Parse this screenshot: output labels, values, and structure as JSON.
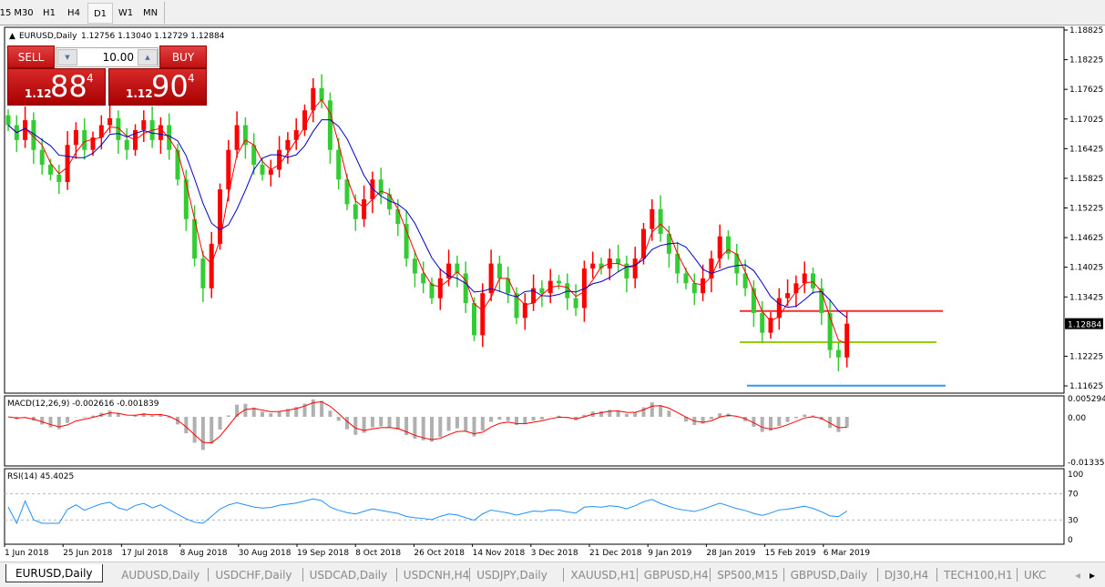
{
  "toolbar": {
    "timeframes": [
      {
        "label": "15"
      },
      {
        "label": "M30"
      },
      {
        "label": "H1"
      },
      {
        "label": "H4"
      },
      {
        "label": "D1",
        "active": true
      },
      {
        "label": "W1"
      },
      {
        "label": "MN"
      }
    ]
  },
  "chart_header": {
    "symbol": "EURUSD,Daily",
    "ohlc": "1.12756 1.13040 1.12729 1.12884"
  },
  "trade_panel": {
    "sell_label": "SELL",
    "buy_label": "BUY",
    "lot": "10.00",
    "bid": {
      "prefix": "1.12",
      "big": "88",
      "sup": "4"
    },
    "ask": {
      "prefix": "1.12",
      "big": "90",
      "sup": "4"
    }
  },
  "colors": {
    "bull": "#ff0000",
    "bear": "#33cc33",
    "ma_fast": "#ff0000",
    "ma_slow": "#0000cc",
    "resistance": "#f03030",
    "support": "#99cc00",
    "low_line": "#3399ee",
    "macd_hist": "#b0b0b0",
    "macd_signal": "#ff0000",
    "rsi": "#1e90ff"
  },
  "chart_data": {
    "type": "candlestick",
    "price_axis": {
      "ticks": [
        "1.18825",
        "1.18225",
        "1.17625",
        "1.17025",
        "1.16425",
        "1.15825",
        "1.15225",
        "1.14625",
        "1.14025",
        "1.13425",
        "1.12225",
        "1.11625"
      ],
      "range": [
        1.11625,
        1.18825
      ],
      "current_price": "1.12884"
    },
    "date_ticks": [
      "1 Jun 2018",
      "25 Jun 2018",
      "17 Jul 2018",
      "8 Aug 2018",
      "30 Aug 2018",
      "19 Sep 2018",
      "8 Oct 2018",
      "26 Oct 2018",
      "14 Nov 2018",
      "3 Dec 2018",
      "21 Dec 2018",
      "9 Jan 2019",
      "28 Jan 2019",
      "15 Feb 2019",
      "6 Mar 2019"
    ],
    "closes": [
      1.169,
      1.166,
      1.17,
      1.164,
      1.161,
      1.159,
      1.1575,
      1.165,
      1.168,
      1.164,
      1.1665,
      1.169,
      1.1704,
      1.166,
      1.164,
      1.168,
      1.17,
      1.166,
      1.169,
      1.164,
      1.158,
      1.15,
      1.142,
      1.136,
      1.145,
      1.156,
      1.164,
      1.169,
      1.165,
      1.161,
      1.159,
      1.16,
      1.164,
      1.166,
      1.168,
      1.172,
      1.1765,
      1.174,
      1.164,
      1.158,
      1.153,
      1.15,
      1.154,
      1.158,
      1.155,
      1.152,
      1.149,
      1.142,
      1.139,
      1.137,
      1.134,
      1.138,
      1.141,
      1.139,
      1.133,
      1.1265,
      1.135,
      1.141,
      1.138,
      1.135,
      1.13,
      1.133,
      1.136,
      1.135,
      1.1375,
      1.137,
      1.134,
      1.132,
      1.14,
      1.141,
      1.14,
      1.142,
      1.141,
      1.138,
      1.142,
      1.148,
      1.152,
      1.147,
      1.143,
      1.139,
      1.137,
      1.135,
      1.138,
      1.142,
      1.1465,
      1.143,
      1.139,
      1.136,
      1.131,
      1.127,
      1.13,
      1.134,
      1.135,
      1.137,
      1.139,
      1.136,
      1.131,
      1.1235,
      1.122,
      1.12884
    ],
    "horizontal_lines": [
      {
        "price": 1.1314,
        "color": "resistance"
      },
      {
        "price": 1.1251,
        "color": "support"
      },
      {
        "price": 1.1163,
        "color": "low_line"
      }
    ],
    "macd": {
      "label": "MACD(12,26,9) -0.002616 -0.001839",
      "ticks": [
        "0.005294",
        "0.00",
        "-0.013353"
      ],
      "range": [
        -0.013353,
        0.005294
      ]
    },
    "rsi": {
      "label": "RSI(14) 45.4025",
      "ticks": [
        "100",
        "70",
        "30",
        "0"
      ],
      "levels": [
        70,
        30
      ]
    }
  },
  "bottom_tabs": [
    {
      "label": "EURUSD,Daily",
      "active": true
    },
    {
      "label": "AUDUSD,Daily"
    },
    {
      "label": "USDCHF,Daily"
    },
    {
      "label": "USDCAD,Daily"
    },
    {
      "label": "USDCNH,H4"
    },
    {
      "label": "USDJPY,Daily"
    },
    {
      "label": "XAUUSD,H1"
    },
    {
      "label": "GBPUSD,H4"
    },
    {
      "label": "SP500,M15"
    },
    {
      "label": "GBPUSD,Daily"
    },
    {
      "label": "DJ30,H4"
    },
    {
      "label": "TECH100,H1"
    },
    {
      "label": "UKC"
    }
  ]
}
